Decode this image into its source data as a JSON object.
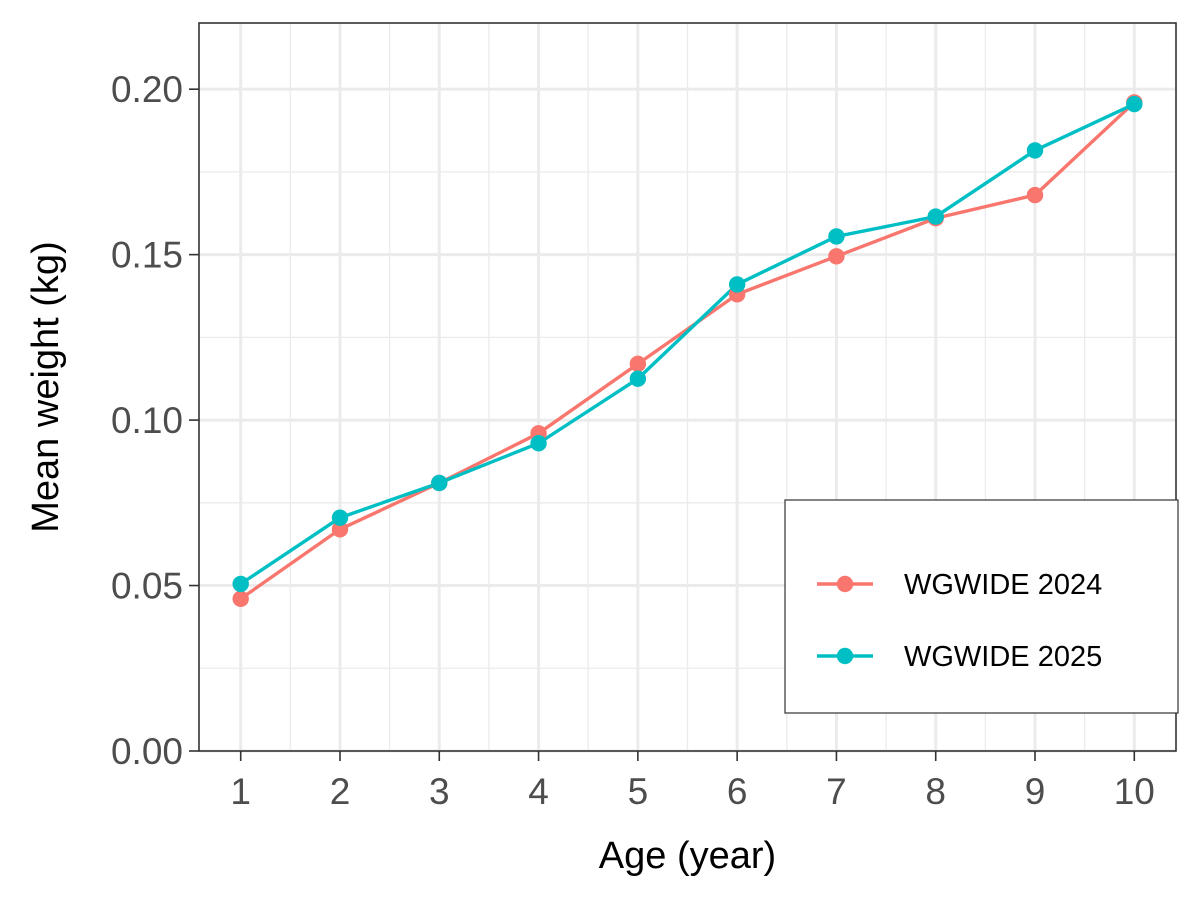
{
  "chart_data": {
    "type": "line",
    "title": "",
    "xlabel": "Age (year)",
    "ylabel": "Mean weight (kg)",
    "x": [
      1,
      2,
      3,
      4,
      5,
      6,
      7,
      8,
      9,
      10
    ],
    "xlim": [
      0.58,
      10.42
    ],
    "ylim": [
      0,
      0.22
    ],
    "x_ticks": [
      1,
      2,
      3,
      4,
      5,
      6,
      7,
      8,
      9,
      10
    ],
    "x_tick_labels": [
      "1",
      "2",
      "3",
      "4",
      "5",
      "6",
      "7",
      "8",
      "9",
      "10"
    ],
    "y_ticks": [
      0,
      0.05,
      0.1,
      0.15,
      0.2
    ],
    "y_tick_labels": [
      "0.00",
      "0.05",
      "0.10",
      "0.15",
      "0.20"
    ],
    "grid": true,
    "legend_position": "bottom-right",
    "series": [
      {
        "name": "WGWIDE 2024",
        "color": "#F8766D",
        "values": [
          0.046,
          0.067,
          0.081,
          0.096,
          0.117,
          0.138,
          0.1495,
          0.161,
          0.168,
          0.196
        ]
      },
      {
        "name": "WGWIDE 2025",
        "color": "#00BFC4",
        "values": [
          0.0505,
          0.0705,
          0.081,
          0.093,
          0.1125,
          0.141,
          0.1555,
          0.1615,
          0.1815,
          0.1955
        ]
      }
    ]
  }
}
